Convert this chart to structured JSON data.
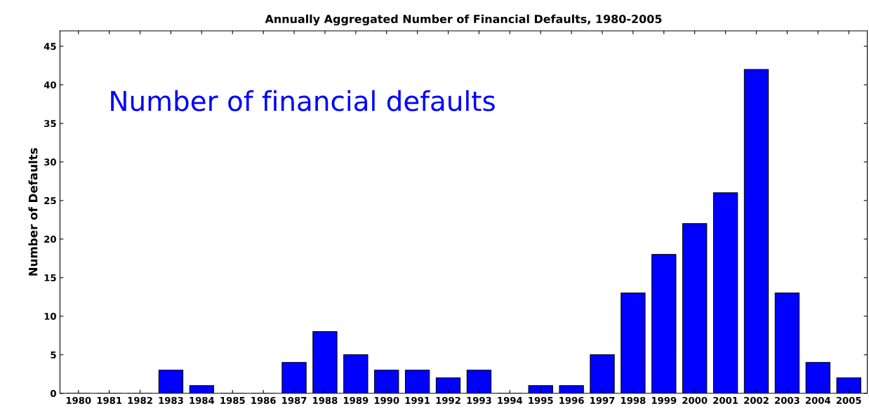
{
  "chart_data": {
    "type": "bar",
    "title": "Annually Aggregated Number of Financial Defaults, 1980-2005",
    "ylabel": "Number of Defaults",
    "annotations": [
      "Number of financial defaults"
    ],
    "categories": [
      "1980",
      "1981",
      "1982",
      "1983",
      "1984",
      "1985",
      "1986",
      "1987",
      "1988",
      "1989",
      "1990",
      "1991",
      "1992",
      "1993",
      "1994",
      "1995",
      "1996",
      "1997",
      "1998",
      "1999",
      "2000",
      "2001",
      "2002",
      "2003",
      "2004",
      "2005"
    ],
    "values": [
      0,
      0,
      0,
      3,
      1,
      0,
      0,
      4,
      8,
      5,
      3,
      3,
      2,
      3,
      0,
      1,
      1,
      5,
      13,
      18,
      22,
      26,
      42,
      13,
      4,
      2
    ],
    "color": "#0000ff",
    "ylim": [
      0,
      47
    ],
    "yticks": [
      0,
      5,
      10,
      15,
      20,
      25,
      30,
      35,
      40,
      45
    ],
    "grid": false,
    "legend": false
  }
}
